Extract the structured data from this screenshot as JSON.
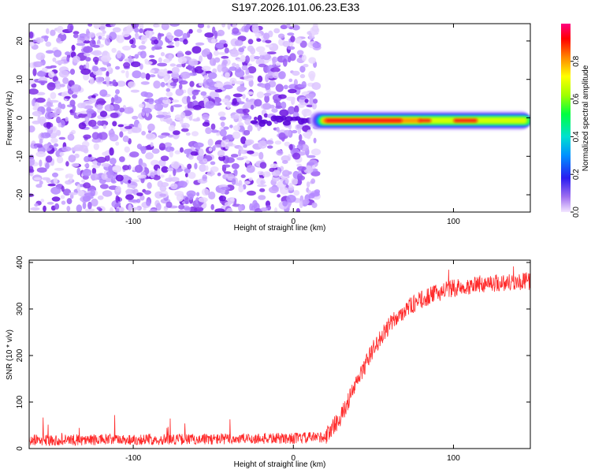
{
  "chart_data": [
    {
      "type": "heatmap",
      "title": "S197.2026.101.06.23.E33",
      "xlabel": "Height of straight line (km)",
      "ylabel": "Frequency (Hz)",
      "xlim": [
        -165,
        148
      ],
      "ylim": [
        -24.5,
        24.5
      ],
      "xticks": [
        -100,
        0,
        100
      ],
      "yticks": [
        -20,
        -10,
        0,
        10,
        20
      ],
      "colorbar": {
        "label": "Normalized spectral amplitude",
        "range": [
          0,
          1
        ],
        "ticks": [
          "0.0",
          "0.2",
          "0.4",
          "0.6",
          "0.8"
        ],
        "tick_values": [
          0.0,
          0.2,
          0.4,
          0.6,
          0.8
        ]
      },
      "features": {
        "noise_region_x": [
          -165,
          15
        ],
        "signal_region_x": [
          10,
          148
        ],
        "signal_center_frequency_hz": -0.7,
        "signal_peak_amplitude": 0.85
      }
    },
    {
      "type": "line",
      "title": "",
      "xlabel": "Height of straight line (km)",
      "ylabel": "SNR (10 * v/v)",
      "xlim": [
        -165,
        148
      ],
      "ylim": [
        0,
        405
      ],
      "xticks": [
        -100,
        0,
        100
      ],
      "yticks": [
        0,
        100,
        200,
        300,
        400
      ],
      "series": [
        {
          "name": "SNR",
          "color": "#ff2a2a",
          "x_key": [
            -165,
            -60,
            0,
            20,
            30,
            40,
            50,
            60,
            70,
            80,
            90,
            100,
            110,
            120,
            148
          ],
          "y_key": [
            18,
            20,
            22,
            25,
            70,
            145,
            215,
            265,
            300,
            320,
            335,
            345,
            350,
            355,
            360
          ],
          "noise_amplitude": 12
        }
      ]
    }
  ]
}
